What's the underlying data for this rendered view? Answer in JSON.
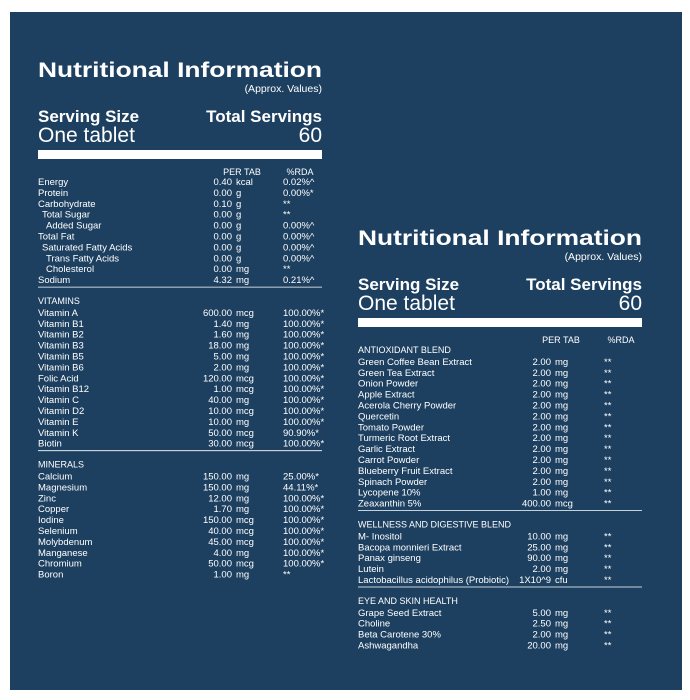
{
  "panels": [
    {
      "title": "Nutritional Information",
      "subtitle": "(Approx. Values)",
      "serving_size_label": "Serving Size",
      "serving_size": "One tablet",
      "total_servings_label": "Total Servings",
      "total_servings": "60",
      "columns": [
        "PER TAB",
        "%RDA"
      ],
      "sections": [
        {
          "rows": [
            [
              "Energy",
              "0.40",
              "kcal",
              "0.02%^"
            ],
            [
              "Protein",
              "0.00",
              "g",
              "0.00%*"
            ],
            [
              "Carbohydrate",
              "0.10",
              "g",
              "**"
            ],
            [
              "Total Sugar",
              "0.00",
              "g",
              "**"
            ],
            [
              "Added Sugar",
              "0.00",
              "g",
              "0.00%^"
            ],
            [
              "Total Fat",
              "0.00",
              "g",
              "0.00%^"
            ],
            [
              "Saturated Fatty Acids",
              "0.00",
              "g",
              "0.00%^"
            ],
            [
              "Trans Fatty Acids",
              "0.00",
              "g",
              "0.00%^"
            ],
            [
              "Cholesterol",
              "0.00",
              "mg",
              "**"
            ],
            [
              "Sodium",
              "4.32",
              "mg",
              "0.21%^"
            ]
          ]
        },
        {
          "heading": "VITAMINS",
          "rows": [
            [
              "Vitamin A",
              "600.00",
              "mcg",
              "100.00%*"
            ],
            [
              "Vitamin B1",
              "1.40",
              "mg",
              "100.00%*"
            ],
            [
              "Vitamin B2",
              "1.60",
              "mg",
              "100.00%*"
            ],
            [
              "Vitamin B3",
              "18.00",
              "mg",
              "100.00%*"
            ],
            [
              "Vitamin B5",
              "5.00",
              "mg",
              "100.00%*"
            ],
            [
              "Vitamin B6",
              "2.00",
              "mg",
              "100.00%*"
            ],
            [
              "Folic Acid",
              "120.00",
              "mcg",
              "100.00%*"
            ],
            [
              "Vitamin B12",
              "1.00",
              "mcg",
              "100.00%*"
            ],
            [
              "Vitamin C",
              "40.00",
              "mg",
              "100.00%*"
            ],
            [
              "Vitamin D2",
              "10.00",
              "mcg",
              "100.00%*"
            ],
            [
              "Vitamin E",
              "10.00",
              "mg",
              "100.00%*"
            ],
            [
              "Vitamin K",
              "50.00",
              "mcg",
              "90.90%*"
            ],
            [
              "Biotin",
              "30.00",
              "mcg",
              "100.00%*"
            ]
          ]
        },
        {
          "heading": "MINERALS",
          "rows": [
            [
              "Calcium",
              "150.00",
              "mg",
              "25.00%*"
            ],
            [
              "Magnesium",
              "150.00",
              "mg",
              "44.11%*"
            ],
            [
              "Zinc",
              "12.00",
              "mg",
              "100.00%*"
            ],
            [
              "Copper",
              "1.70",
              "mg",
              "100.00%*"
            ],
            [
              "Iodine",
              "150.00",
              "mcg",
              "100.00%*"
            ],
            [
              "Selenium",
              "40.00",
              "mcg",
              "100.00%*"
            ],
            [
              "Molybdenum",
              "45.00",
              "mcg",
              "100.00%*"
            ],
            [
              "Manganese",
              "4.00",
              "mg",
              "100.00%*"
            ],
            [
              "Chromium",
              "50.00",
              "mcg",
              "100.00%*"
            ],
            [
              "Boron",
              "1.00",
              "mg",
              "**"
            ]
          ]
        }
      ]
    },
    {
      "title": "Nutritional Information",
      "subtitle": "(Approx. Values)",
      "serving_size_label": "Serving Size",
      "serving_size": "One tablet",
      "total_servings_label": "Total Servings",
      "total_servings": "60",
      "columns": [
        "PER TAB",
        "%RDA"
      ],
      "sections": [
        {
          "heading": "ANTIOXIDANT BLEND",
          "rows": [
            [
              "Green Coffee Bean Extract",
              "2.00",
              "mg",
              "**"
            ],
            [
              "Green Tea Extract",
              "2.00",
              "mg",
              "**"
            ],
            [
              "Onion Powder",
              "2.00",
              "mg",
              "**"
            ],
            [
              "Apple Extract",
              "2.00",
              "mg",
              "**"
            ],
            [
              "Acerola Cherry Powder",
              "2.00",
              "mg",
              "**"
            ],
            [
              "Quercetin",
              "2.00",
              "mg",
              "**"
            ],
            [
              "Tomato Powder",
              "2.00",
              "mg",
              "**"
            ],
            [
              "Turmeric Root Extract",
              "2.00",
              "mg",
              "**"
            ],
            [
              "Garlic Extract",
              "2.00",
              "mg",
              "**"
            ],
            [
              "Carrot Powder",
              "2.00",
              "mg",
              "**"
            ],
            [
              "Blueberry Fruit Extract",
              "2.00",
              "mg",
              "**"
            ],
            [
              "Spinach Powder",
              "2.00",
              "mg",
              "**"
            ],
            [
              "Lycopene 10%",
              "1.00",
              "mg",
              "**"
            ],
            [
              "Zeaxanthin 5%",
              "400.00",
              "mcg",
              "**"
            ]
          ]
        },
        {
          "heading": "WELLNESS AND DIGESTIVE BLEND",
          "rows": [
            [
              "M- Inositol",
              "10.00",
              "mg",
              "**"
            ],
            [
              "Bacopa monnieri Extract",
              "25.00",
              "mg",
              "**"
            ],
            [
              "Panax ginseng",
              "90.00",
              "mg",
              "**"
            ],
            [
              "Lutein",
              "2.00",
              "mg",
              "**"
            ],
            [
              "Lactobacillus acidophilus (Probiotic)",
              "1X10^9",
              "cfu",
              "**"
            ]
          ]
        },
        {
          "heading": "EYE AND SKIN HEALTH",
          "rows": [
            [
              "Grape Seed Extract",
              "5.00",
              "mg",
              "**"
            ],
            [
              "Choline",
              "2.50",
              "mg",
              "**"
            ],
            [
              "Beta Carotene 30%",
              "2.00",
              "mg",
              "**"
            ],
            [
              "Ashwagandha",
              "20.00",
              "mg",
              "**"
            ]
          ]
        }
      ]
    }
  ]
}
